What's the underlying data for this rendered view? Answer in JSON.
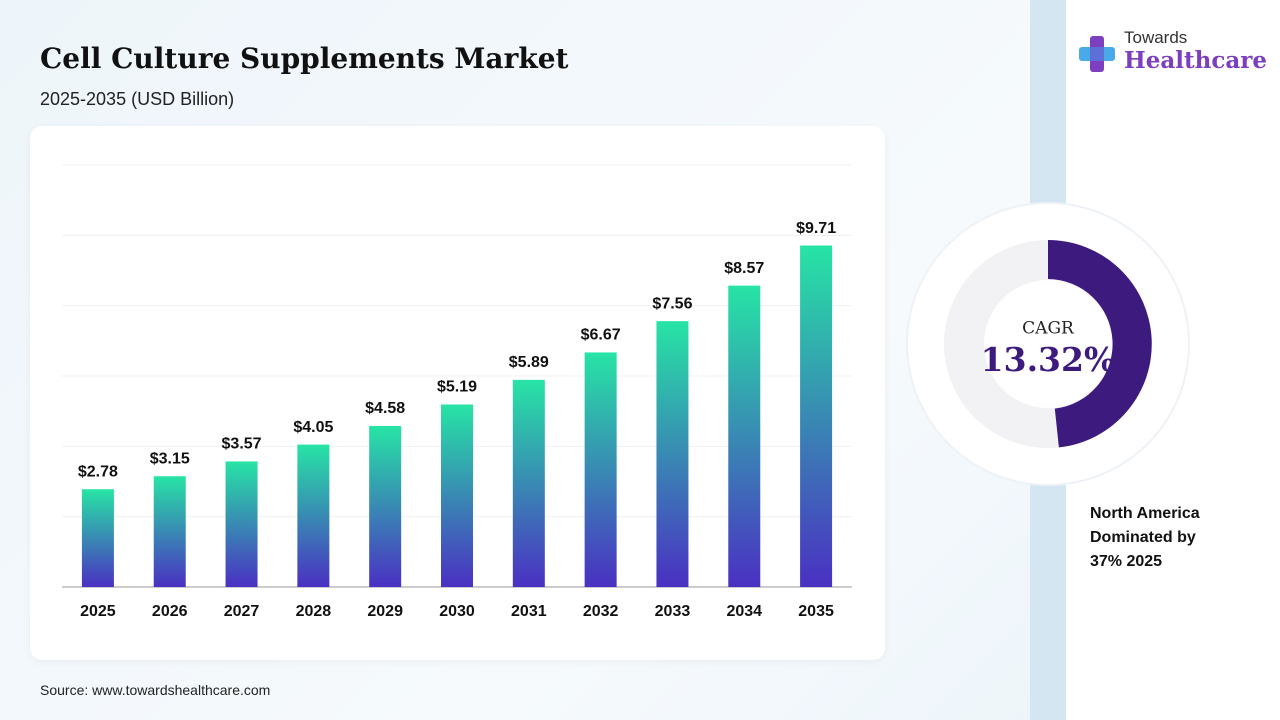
{
  "header": {
    "title": "Cell Culture Supplements Market",
    "subtitle": "2025-2035 (USD Billion)"
  },
  "logo": {
    "line1": "Towards",
    "line2": "Healthcare"
  },
  "chart_data": {
    "type": "bar",
    "categories": [
      "2025",
      "2026",
      "2027",
      "2028",
      "2029",
      "2030",
      "2031",
      "2032",
      "2033",
      "2034",
      "2035"
    ],
    "values": [
      2.78,
      3.15,
      3.57,
      4.05,
      4.58,
      5.19,
      5.89,
      6.67,
      7.56,
      8.57,
      9.71
    ],
    "value_labels": [
      "$2.78",
      "$3.15",
      "$3.57",
      "$4.05",
      "$4.58",
      "$5.19",
      "$5.89",
      "$6.67",
      "$7.56",
      "$8.57",
      "$9.71"
    ],
    "color": [
      "#27e4a5",
      "#4a30c2"
    ],
    "ylim": [
      0,
      12
    ],
    "yticks": [
      0,
      2,
      4,
      6,
      8,
      10,
      12
    ],
    "grid": true
  },
  "cagr": {
    "label": "CAGR",
    "value": "13.32%"
  },
  "note": [
    "North America",
    "Dominated by",
    "37% 2025"
  ],
  "source": "Source: www.towardshealthcare.com"
}
